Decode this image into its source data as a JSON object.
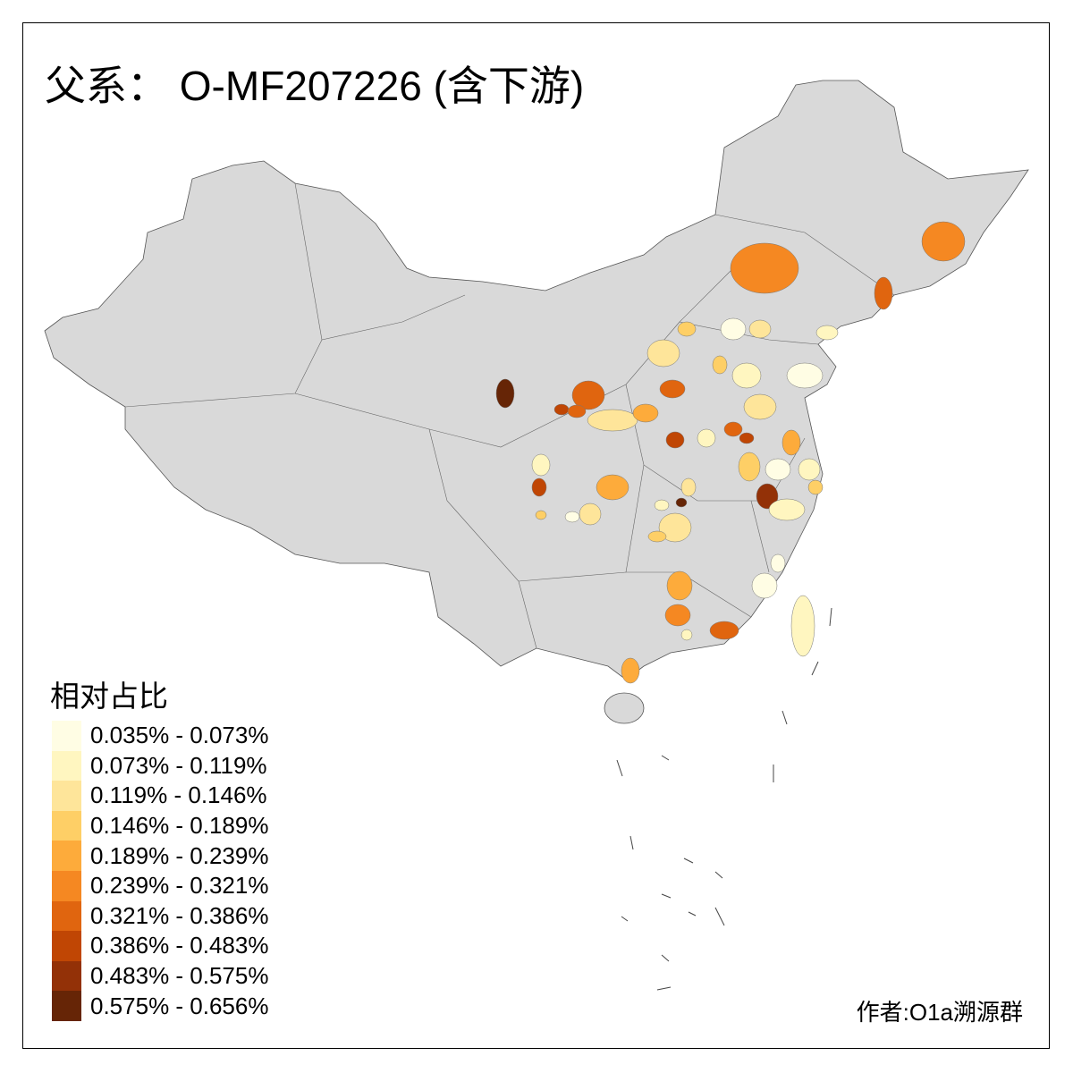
{
  "title": "父系： O-MF207226 (含下游)",
  "legend": {
    "title": "相对占比",
    "classes": [
      {
        "label": "0.035% - 0.073%",
        "color": "#FFFDE4"
      },
      {
        "label": "0.073% - 0.119%",
        "color": "#FFF6C0"
      },
      {
        "label": "0.119% - 0.146%",
        "color": "#FEE59A"
      },
      {
        "label": "0.146% - 0.189%",
        "color": "#FECF66"
      },
      {
        "label": "0.189% - 0.239%",
        "color": "#FDAB3B"
      },
      {
        "label": "0.239% - 0.321%",
        "color": "#F58822"
      },
      {
        "label": "0.321% - 0.386%",
        "color": "#E0650F"
      },
      {
        "label": "0.386% - 0.483%",
        "color": "#C04604"
      },
      {
        "label": "0.483% - 0.575%",
        "color": "#933107"
      },
      {
        "label": "0.575% - 0.656%",
        "color": "#662506"
      }
    ],
    "no_data_color": "#D9D9D9"
  },
  "credit": "作者:O1a溯源群"
}
